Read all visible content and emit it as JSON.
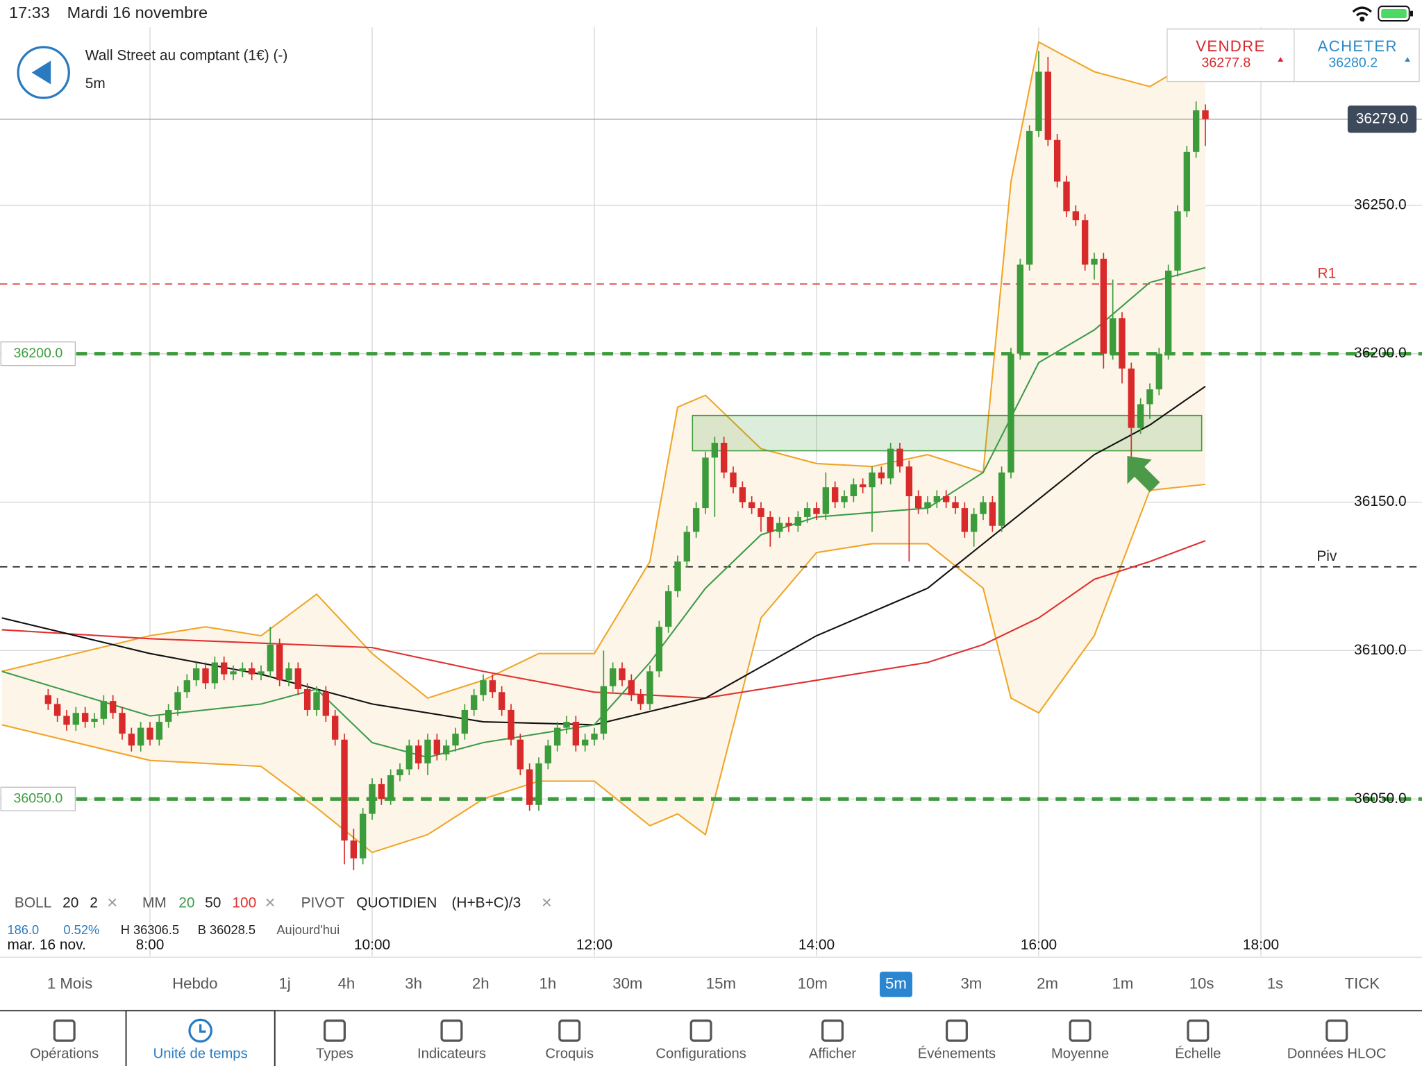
{
  "status_bar": {
    "time": "17:33",
    "date": "Mardi 16 novembre"
  },
  "instrument": {
    "name": "Wall Street au comptant (1€) (-)",
    "timeframe": "5m"
  },
  "quotes": {
    "sell_label": "VENDRE",
    "sell": "36277.8",
    "buy_label": "ACHETER",
    "buy": "36280.2"
  },
  "chart_data": {
    "type": "candlestick",
    "ylim": [
      35997,
      36310
    ],
    "yticks": [
      {
        "value": 36250,
        "label": "36250.0"
      },
      {
        "value": 36200,
        "label": "36200.0"
      },
      {
        "value": 36150,
        "label": "36150.0"
      },
      {
        "value": 36100,
        "label": "36100.0"
      },
      {
        "value": 36050,
        "label": "36050.0"
      }
    ],
    "xlim": [
      399,
      1167
    ],
    "xticks": [
      {
        "value": 480,
        "label": "8:00"
      },
      {
        "value": 600,
        "label": "10:00"
      },
      {
        "value": 720,
        "label": "12:00"
      },
      {
        "value": 840,
        "label": "14:00"
      },
      {
        "value": 960,
        "label": "16:00"
      },
      {
        "value": 1080,
        "label": "18:00"
      }
    ],
    "grid": true,
    "up_color": "#3c9c3c",
    "down_color": "#d82a2a",
    "x": [
      425,
      430,
      435,
      440,
      445,
      450,
      455,
      460,
      465,
      470,
      475,
      480,
      485,
      490,
      495,
      500,
      505,
      510,
      515,
      520,
      525,
      530,
      535,
      540,
      545,
      550,
      555,
      560,
      565,
      570,
      575,
      580,
      585,
      590,
      595,
      600,
      605,
      610,
      615,
      620,
      625,
      630,
      635,
      640,
      645,
      650,
      655,
      660,
      665,
      670,
      675,
      680,
      685,
      690,
      695,
      700,
      705,
      710,
      715,
      720,
      725,
      730,
      735,
      740,
      745,
      750,
      755,
      760,
      765,
      770,
      775,
      780,
      785,
      790,
      795,
      800,
      805,
      810,
      815,
      820,
      825,
      830,
      835,
      840,
      845,
      850,
      855,
      860,
      865,
      870,
      875,
      880,
      885,
      890,
      895,
      900,
      905,
      910,
      915,
      920,
      925,
      930,
      935,
      940,
      945,
      950,
      955,
      960,
      965,
      970,
      975,
      980,
      985,
      990,
      995,
      1000,
      1005,
      1010,
      1015,
      1020,
      1025,
      1030,
      1035,
      1040,
      1045,
      1050
    ],
    "candles": [
      [
        36085,
        36087,
        36080,
        36082
      ],
      [
        36082,
        36084,
        36076,
        36078
      ],
      [
        36078,
        36080,
        36073,
        36075
      ],
      [
        36075,
        36081,
        36073,
        36079
      ],
      [
        36079,
        36081,
        36074,
        36076
      ],
      [
        36076,
        36079,
        36074,
        36077
      ],
      [
        36077,
        36085,
        36075,
        36083
      ],
      [
        36083,
        36085,
        36077,
        36079
      ],
      [
        36079,
        36081,
        36070,
        36072
      ],
      [
        36072,
        36074,
        36066,
        36068
      ],
      [
        36068,
        36076,
        36066,
        36074
      ],
      [
        36074,
        36076,
        36068,
        36070
      ],
      [
        36070,
        36078,
        36068,
        36076
      ],
      [
        36076,
        36082,
        36074,
        36080
      ],
      [
        36080,
        36088,
        36078,
        36086
      ],
      [
        36086,
        36092,
        36084,
        36090
      ],
      [
        36090,
        36096,
        36088,
        36094
      ],
      [
        36094,
        36096,
        36087,
        36089
      ],
      [
        36089,
        36098,
        36087,
        36096
      ],
      [
        36096,
        36098,
        36090,
        36092
      ],
      [
        36092,
        36095,
        36090,
        36093
      ],
      [
        36093,
        36096,
        36091,
        36094
      ],
      [
        36094,
        36096,
        36090,
        36092
      ],
      [
        36092,
        36095,
        36090,
        36093
      ],
      [
        36093,
        36108,
        36091,
        36102
      ],
      [
        36102,
        36104,
        36088,
        36090
      ],
      [
        36090,
        36096,
        36088,
        36094
      ],
      [
        36094,
        36096,
        36085,
        36087
      ],
      [
        36087,
        36089,
        36078,
        36080
      ],
      [
        36080,
        36088,
        36078,
        36086
      ],
      [
        36086,
        36088,
        36076,
        36078
      ],
      [
        36078,
        36080,
        36068,
        36070
      ],
      [
        36070,
        36072,
        36028,
        36036
      ],
      [
        36036,
        36040,
        36026,
        36030
      ],
      [
        36030,
        36047,
        36028,
        36045
      ],
      [
        36045,
        36057,
        36043,
        36055
      ],
      [
        36055,
        36057,
        36048,
        36050
      ],
      [
        36050,
        36060,
        36048,
        36058
      ],
      [
        36058,
        36062,
        36056,
        36060
      ],
      [
        36060,
        36070,
        36058,
        36068
      ],
      [
        36068,
        36070,
        36060,
        36062
      ],
      [
        36062,
        36072,
        36058,
        36070
      ],
      [
        36070,
        36072,
        36063,
        36065
      ],
      [
        36065,
        36070,
        36063,
        36068
      ],
      [
        36068,
        36074,
        36066,
        36072
      ],
      [
        36072,
        36082,
        36070,
        36080
      ],
      [
        36080,
        36087,
        36078,
        36085
      ],
      [
        36085,
        36092,
        36083,
        36090
      ],
      [
        36090,
        36092,
        36084,
        36086
      ],
      [
        36086,
        36088,
        36078,
        36080
      ],
      [
        36080,
        36082,
        36068,
        36070
      ],
      [
        36070,
        36072,
        36058,
        36060
      ],
      [
        36060,
        36062,
        36046,
        36048
      ],
      [
        36048,
        36064,
        36046,
        36062
      ],
      [
        36062,
        36070,
        36060,
        36068
      ],
      [
        36068,
        36076,
        36066,
        36074
      ],
      [
        36074,
        36078,
        36072,
        36076
      ],
      [
        36076,
        36078,
        36066,
        36068
      ],
      [
        36068,
        36072,
        36066,
        36070
      ],
      [
        36070,
        36074,
        36068,
        36072
      ],
      [
        36072,
        36100,
        36070,
        36088
      ],
      [
        36088,
        36096,
        36086,
        36094
      ],
      [
        36094,
        36096,
        36088,
        36090
      ],
      [
        36090,
        36092,
        36083,
        36085
      ],
      [
        36085,
        36087,
        36080,
        36082
      ],
      [
        36082,
        36095,
        36080,
        36093
      ],
      [
        36093,
        36110,
        36091,
        36108
      ],
      [
        36108,
        36122,
        36106,
        36120
      ],
      [
        36120,
        36132,
        36118,
        36130
      ],
      [
        36130,
        36142,
        36128,
        36140
      ],
      [
        36140,
        36150,
        36138,
        36148
      ],
      [
        36148,
        36167,
        36146,
        36165
      ],
      [
        36165,
        36172,
        36145,
        36170
      ],
      [
        36170,
        36172,
        36158,
        36160
      ],
      [
        36160,
        36162,
        36153,
        36155
      ],
      [
        36155,
        36157,
        36148,
        36150
      ],
      [
        36150,
        36152,
        36146,
        36148
      ],
      [
        36148,
        36150,
        36140,
        36145
      ],
      [
        36145,
        36147,
        36135,
        36140
      ],
      [
        36140,
        36145,
        36138,
        36143
      ],
      [
        36143,
        36145,
        36140,
        36142
      ],
      [
        36142,
        36147,
        36140,
        36145
      ],
      [
        36145,
        36150,
        36143,
        36148
      ],
      [
        36148,
        36150,
        36144,
        36146
      ],
      [
        36146,
        36160,
        36144,
        36155
      ],
      [
        36155,
        36157,
        36148,
        36150
      ],
      [
        36150,
        36154,
        36148,
        36152
      ],
      [
        36152,
        36158,
        36150,
        36156
      ],
      [
        36156,
        36158,
        36153,
        36155
      ],
      [
        36155,
        36162,
        36140,
        36160
      ],
      [
        36160,
        36162,
        36156,
        36158
      ],
      [
        36158,
        36170,
        36156,
        36168
      ],
      [
        36168,
        36170,
        36160,
        36162
      ],
      [
        36162,
        36164,
        36130,
        36152
      ],
      [
        36152,
        36154,
        36146,
        36148
      ],
      [
        36148,
        36152,
        36146,
        36150
      ],
      [
        36150,
        36154,
        36148,
        36152
      ],
      [
        36152,
        36154,
        36148,
        36150
      ],
      [
        36150,
        36152,
        36146,
        36148
      ],
      [
        36148,
        36150,
        36138,
        36140
      ],
      [
        36140,
        36148,
        36135,
        36146
      ],
      [
        36146,
        36152,
        36144,
        36150
      ],
      [
        36150,
        36152,
        36140,
        36142
      ],
      [
        36142,
        36162,
        36140,
        36160
      ],
      [
        36160,
        36202,
        36158,
        36200
      ],
      [
        36200,
        36232,
        36198,
        36230
      ],
      [
        36230,
        36277,
        36228,
        36275
      ],
      [
        36275,
        36302,
        36273,
        36295
      ],
      [
        36295,
        36300,
        36270,
        36272
      ],
      [
        36272,
        36274,
        36256,
        36258
      ],
      [
        36258,
        36260,
        36246,
        36248
      ],
      [
        36248,
        36250,
        36243,
        36245
      ],
      [
        36245,
        36247,
        36228,
        36230
      ],
      [
        36230,
        36234,
        36225,
        36232
      ],
      [
        36232,
        36234,
        36195,
        36200
      ],
      [
        36200,
        36225,
        36198,
        36212
      ],
      [
        36212,
        36214,
        36190,
        36195
      ],
      [
        36195,
        36197,
        36165,
        36175
      ],
      [
        36175,
        36185,
        36173,
        36183
      ],
      [
        36183,
        36190,
        36178,
        36188
      ],
      [
        36188,
        36202,
        36186,
        36200
      ],
      [
        36200,
        36230,
        36198,
        36228
      ],
      [
        36228,
        36250,
        36226,
        36248
      ],
      [
        36248,
        36270,
        36246,
        36268
      ],
      [
        36268,
        36285,
        36266,
        36282
      ],
      [
        36282,
        36284,
        36270,
        36279
      ]
    ],
    "bollinger": {
      "color": "#f0a528",
      "x": [
        400,
        480,
        510,
        540,
        570,
        600,
        630,
        660,
        690,
        720,
        750,
        765,
        780,
        810,
        840,
        870,
        900,
        930,
        945,
        960,
        990,
        1020,
        1050
      ],
      "upper": [
        36093,
        36105,
        36108,
        36105,
        36119,
        36099,
        36084,
        36090,
        36099,
        36099,
        36130,
        36182,
        36186,
        36168,
        36163,
        36162,
        36166,
        36160,
        36258,
        36305,
        36295,
        36290,
        36301
      ],
      "lower": [
        36075,
        36063,
        36062,
        36061,
        36047,
        36032,
        36038,
        36050,
        36056,
        36056,
        36041,
        36045,
        36038,
        36111,
        36133,
        36136,
        36136,
        36121,
        36084,
        36079,
        36105,
        36154,
        36156
      ]
    },
    "moving_averages": [
      {
        "color": "#e03030",
        "x": [
          400,
          480,
          600,
          660,
          720,
          780,
          840,
          900,
          930,
          960,
          990,
          1020,
          1050
        ],
        "values": [
          36107,
          36104,
          36101,
          36093,
          36086,
          36084,
          36090,
          36096,
          36102,
          36111,
          36124,
          36130,
          36137
        ]
      },
      {
        "color": "#111111",
        "x": [
          400,
          480,
          540,
          600,
          660,
          720,
          780,
          840,
          900,
          960,
          990,
          1020,
          1050
        ],
        "values": [
          36111,
          36099,
          36092,
          36082,
          36076,
          36075,
          36084,
          36105,
          36121,
          36151,
          36166,
          36176,
          36189
        ]
      },
      {
        "color": "#3c9c4c",
        "x": [
          400,
          480,
          540,
          570,
          600,
          630,
          660,
          720,
          750,
          780,
          810,
          840,
          900,
          930,
          960,
          990,
          1020,
          1050
        ],
        "values": [
          36093,
          36078,
          36082,
          36087,
          36069,
          36064,
          36069,
          36075,
          36096,
          36121,
          36139,
          36145,
          36148,
          36160,
          36197,
          36208,
          36224,
          36229
        ]
      }
    ],
    "levels": [
      {
        "label": "R1",
        "value": 36223.5,
        "color": "#e03030",
        "style": "pivot"
      },
      {
        "label": "Piv",
        "value": 36128.2,
        "color": "#222222",
        "style": "pivot"
      },
      {
        "label": "36200.0",
        "value": 36200,
        "color": "#3c9c3c",
        "style": "alert"
      },
      {
        "label": "36050.0",
        "value": 36050,
        "color": "#3c9c3c",
        "style": "alert"
      }
    ],
    "current_price": {
      "value": 36279,
      "label": "36279.0"
    },
    "zone": {
      "low": 36167.3,
      "high": 36179.2,
      "x": [
        773,
        1048
      ],
      "color": "#3c9c3c"
    }
  },
  "indicators": {
    "boll": [
      "BOLL",
      "20",
      "2"
    ],
    "mm": [
      "MM",
      "20",
      "50",
      "100"
    ],
    "pivot": [
      "PIVOT",
      "QUOTIDIEN",
      "(H+B+C)/3"
    ],
    "close": "×"
  },
  "stats": [
    "186.0",
    "0.52%",
    "H 36306.5",
    "B 36028.5",
    "Aujourd'hui"
  ],
  "date_label": "mar. 16 nov.",
  "timeframes": [
    {
      "label": "1 Mois"
    },
    {
      "label": "Hebdo"
    },
    {
      "label": "1j"
    },
    {
      "label": "4h"
    },
    {
      "label": "3h"
    },
    {
      "label": "2h"
    },
    {
      "label": "1h"
    },
    {
      "label": "30m"
    },
    {
      "label": "15m"
    },
    {
      "label": "10m"
    },
    {
      "label": "5m",
      "selected": true
    },
    {
      "label": "3m"
    },
    {
      "label": "2m"
    },
    {
      "label": "1m"
    },
    {
      "label": "10s"
    },
    {
      "label": "1s"
    },
    {
      "label": "TICK"
    }
  ],
  "toolbar": [
    {
      "label": "Opérations"
    },
    {
      "label": "Unité de temps",
      "selected": true
    },
    {
      "label": "Types"
    },
    {
      "label": "Indicateurs"
    },
    {
      "label": "Croquis"
    },
    {
      "label": "Configurations"
    },
    {
      "label": "Afficher"
    },
    {
      "label": "Événements"
    },
    {
      "label": "Moyenne"
    },
    {
      "label": "Échelle"
    },
    {
      "label": "Données HLOC"
    }
  ]
}
